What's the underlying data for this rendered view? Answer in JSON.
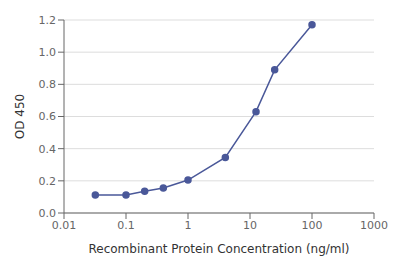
{
  "chart_data": {
    "type": "line",
    "x": [
      0.032,
      0.1,
      0.2,
      0.4,
      1.0,
      4.0,
      12.5,
      25,
      100
    ],
    "values": [
      0.112,
      0.112,
      0.135,
      0.155,
      0.205,
      0.345,
      0.63,
      0.89,
      1.17
    ],
    "color": "#4a5899",
    "marker": "circle",
    "xlabel": "Recombinant Protein Concentration (ng/ml)",
    "ylabel": "OD 450",
    "log": "x",
    "xlim": [
      0.01,
      1000
    ],
    "ylim": [
      0,
      1.2
    ],
    "xticks": [
      0.01,
      0.1,
      1,
      10,
      100,
      1000
    ],
    "yticks": [
      {
        "value": 0,
        "label": "0.0"
      },
      0.2,
      0.4,
      0.6,
      0.8,
      {
        "value": 1.0,
        "label": "1.0"
      },
      1.2
    ],
    "grid": "y"
  }
}
